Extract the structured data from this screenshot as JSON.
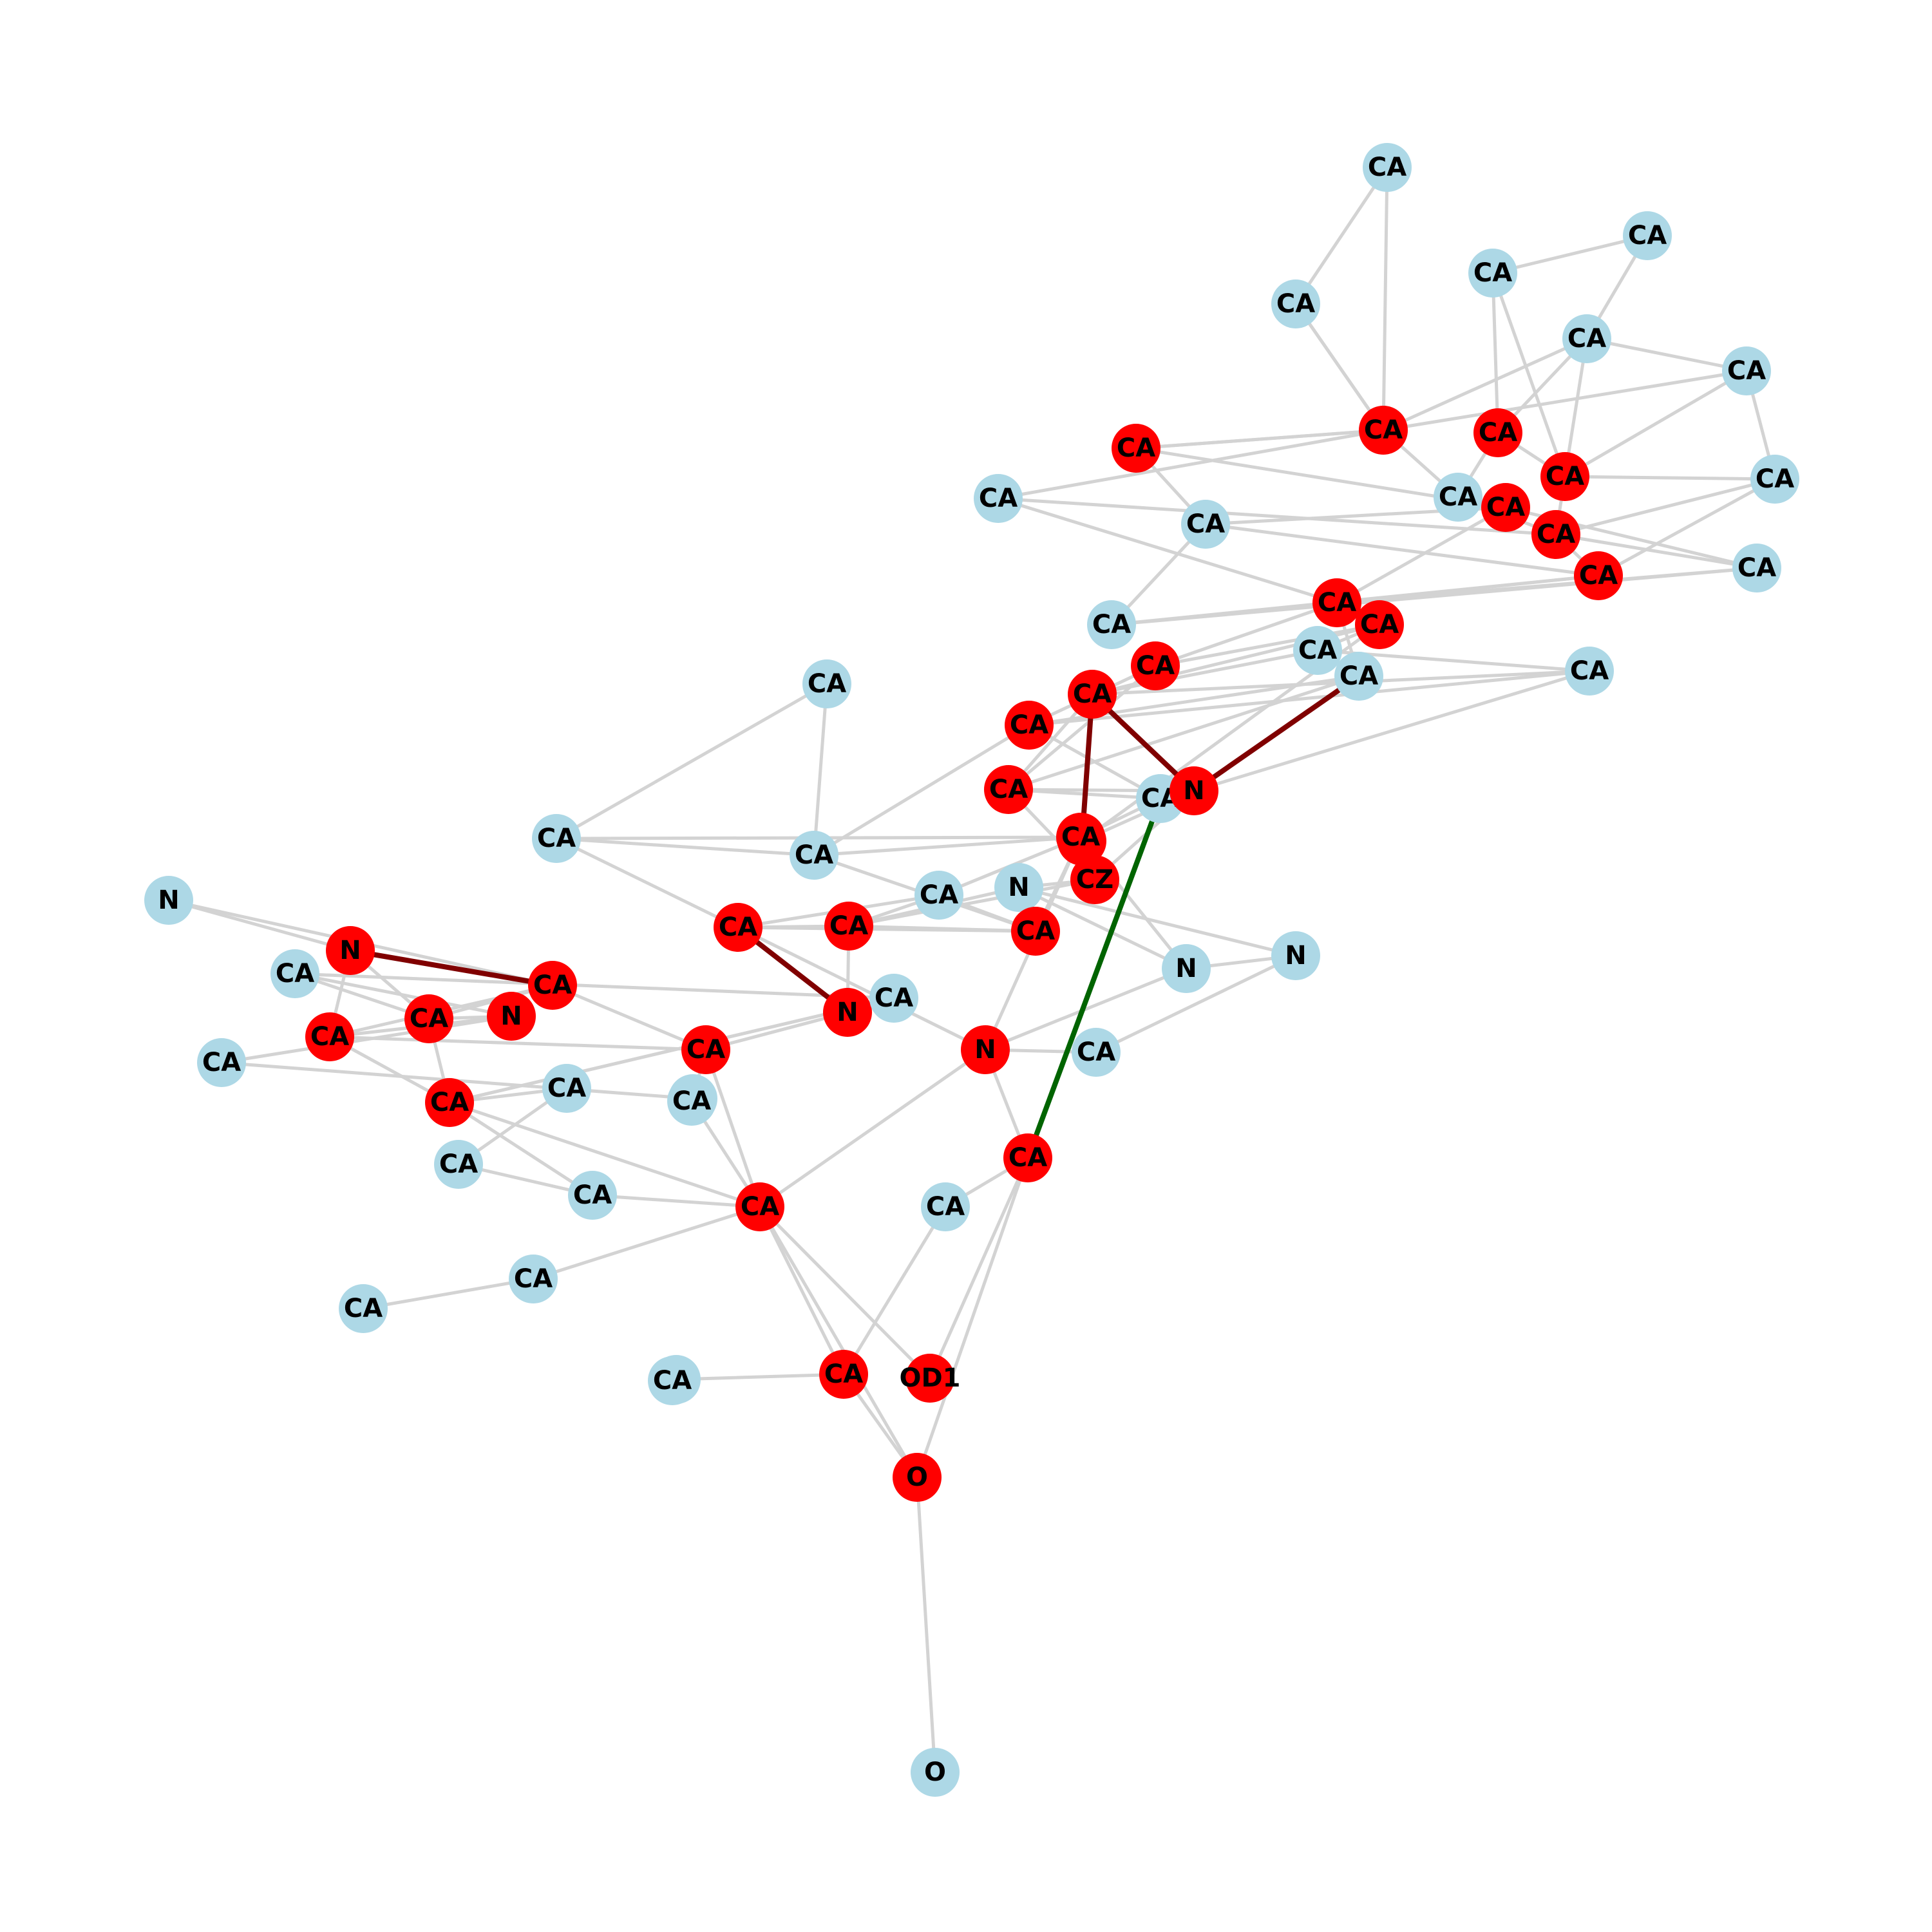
{
  "colors": {
    "background": "#ffffff",
    "edge": "#d3d3d3",
    "bond": "#800000",
    "highlight": "#006400",
    "node_default": "#add8e6",
    "node_selected": "#ff0000",
    "label": "#000000"
  },
  "nodes": [
    {
      "id": "a1",
      "label": "CA",
      "group": "default"
    },
    {
      "id": "a2",
      "label": "CA",
      "group": "default"
    },
    {
      "id": "a3",
      "label": "CA",
      "group": "default"
    },
    {
      "id": "a4",
      "label": "CA",
      "group": "default"
    },
    {
      "id": "a5",
      "label": "CA",
      "group": "default"
    },
    {
      "id": "a6",
      "label": "CA",
      "group": "default"
    },
    {
      "id": "a7",
      "label": "CA",
      "group": "selected"
    },
    {
      "id": "a8",
      "label": "CA",
      "group": "selected"
    },
    {
      "id": "a9",
      "label": "CA",
      "group": "default"
    },
    {
      "id": "a10",
      "label": "CA",
      "group": "default"
    },
    {
      "id": "a11",
      "label": "CA",
      "group": "selected"
    },
    {
      "id": "a12",
      "label": "CA",
      "group": "default"
    },
    {
      "id": "a13",
      "label": "CA",
      "group": "selected"
    },
    {
      "id": "a14",
      "label": "CA",
      "group": "default"
    },
    {
      "id": "a15",
      "label": "CA",
      "group": "default"
    },
    {
      "id": "a16",
      "label": "CA",
      "group": "selected"
    },
    {
      "id": "a17",
      "label": "CA",
      "group": "selected"
    },
    {
      "id": "a18",
      "label": "CA",
      "group": "selected"
    },
    {
      "id": "a19",
      "label": "CA",
      "group": "default"
    },
    {
      "id": "a20",
      "label": "CA",
      "group": "default"
    },
    {
      "id": "a21",
      "label": "CA",
      "group": "selected"
    },
    {
      "id": "a22",
      "label": "CA",
      "group": "selected"
    },
    {
      "id": "a23",
      "label": "CA",
      "group": "default"
    },
    {
      "id": "a24",
      "label": "CA",
      "group": "default"
    },
    {
      "id": "a25",
      "label": "CA",
      "group": "selected"
    },
    {
      "id": "a26",
      "label": "CA",
      "group": "default"
    },
    {
      "id": "a27",
      "label": "CA",
      "group": "default"
    },
    {
      "id": "a28",
      "label": "CA",
      "group": "selected"
    },
    {
      "id": "a29",
      "label": "CA",
      "group": "selected"
    },
    {
      "id": "a30",
      "label": "CA",
      "group": "default"
    },
    {
      "id": "a31",
      "label": "N",
      "group": "selected"
    },
    {
      "id": "a32",
      "label": "CA",
      "group": "default"
    },
    {
      "id": "a33",
      "label": "CA",
      "group": "selected"
    },
    {
      "id": "a34",
      "label": "N",
      "group": "selected"
    },
    {
      "id": "a35",
      "label": "CA",
      "group": "default"
    },
    {
      "id": "a36",
      "label": "CA",
      "group": "selected"
    },
    {
      "id": "a37",
      "label": "N",
      "group": "default"
    },
    {
      "id": "a38",
      "label": "CZ",
      "group": "selected"
    },
    {
      "id": "a39",
      "label": "CA",
      "group": "default"
    },
    {
      "id": "a40",
      "label": "CA",
      "group": "selected"
    },
    {
      "id": "a41",
      "label": "N",
      "group": "default"
    },
    {
      "id": "a42",
      "label": "CA",
      "group": "selected"
    },
    {
      "id": "a43",
      "label": "N",
      "group": "default"
    },
    {
      "id": "a44",
      "label": "N",
      "group": "default"
    },
    {
      "id": "a45",
      "label": "N",
      "group": "selected"
    },
    {
      "id": "a46",
      "label": "CA",
      "group": "selected"
    },
    {
      "id": "a47",
      "label": "N",
      "group": "selected"
    },
    {
      "id": "a48",
      "label": "CA",
      "group": "selected"
    },
    {
      "id": "a49",
      "label": "CA",
      "group": "default"
    },
    {
      "id": "a50",
      "label": "CA",
      "group": "default"
    },
    {
      "id": "a51",
      "label": "N",
      "group": "selected"
    },
    {
      "id": "a52",
      "label": "CA",
      "group": "default"
    },
    {
      "id": "a53",
      "label": "CA",
      "group": "selected"
    },
    {
      "id": "a54",
      "label": "CA",
      "group": "selected"
    },
    {
      "id": "a55",
      "label": "CA",
      "group": "default"
    },
    {
      "id": "a56",
      "label": "CA",
      "group": "selected"
    },
    {
      "id": "a57",
      "label": "N",
      "group": "selected"
    },
    {
      "id": "a58",
      "label": "CA",
      "group": "default"
    },
    {
      "id": "a59",
      "label": "CA",
      "group": "default"
    },
    {
      "id": "a60",
      "label": "CA",
      "group": "selected"
    },
    {
      "id": "a61",
      "label": "CA",
      "group": "default"
    },
    {
      "id": "a62",
      "label": "CA",
      "group": "default"
    },
    {
      "id": "a63",
      "label": "CA",
      "group": "default"
    },
    {
      "id": "a64",
      "label": "CA",
      "group": "selected"
    },
    {
      "id": "a65",
      "label": "CA",
      "group": "selected"
    },
    {
      "id": "a66",
      "label": "CA",
      "group": "default"
    },
    {
      "id": "a67",
      "label": "CA",
      "group": "default"
    },
    {
      "id": "a68",
      "label": "CA",
      "group": "default"
    },
    {
      "id": "a69",
      "label": "CA",
      "group": "default"
    },
    {
      "id": "a70",
      "label": "CA",
      "group": "selected"
    },
    {
      "id": "a71",
      "label": "OD1",
      "group": "selected"
    },
    {
      "id": "a72",
      "label": "CA",
      "group": "default"
    },
    {
      "id": "a73",
      "label": "O",
      "group": "selected"
    },
    {
      "id": "a74",
      "label": "O",
      "group": "default"
    }
  ],
  "edges": [
    [
      "a1",
      "a3"
    ],
    [
      "a1",
      "a6"
    ],
    [
      "a2",
      "a5"
    ],
    [
      "a2",
      "a4"
    ],
    [
      "a3",
      "a6"
    ],
    [
      "a3",
      "a7"
    ],
    [
      "a5",
      "a7"
    ],
    [
      "a5",
      "a13"
    ],
    [
      "a5",
      "a9"
    ],
    [
      "a5",
      "a8"
    ],
    [
      "a4",
      "a8"
    ],
    [
      "a6",
      "a11"
    ],
    [
      "a6",
      "a7"
    ],
    [
      "a7",
      "a11"
    ],
    [
      "a7",
      "a12"
    ],
    [
      "a7",
      "a10"
    ],
    [
      "a8",
      "a13"
    ],
    [
      "a8",
      "a12"
    ],
    [
      "a9",
      "a13"
    ],
    [
      "a9",
      "a14"
    ],
    [
      "a13",
      "a14"
    ],
    [
      "a13",
      "a17"
    ],
    [
      "a11",
      "a15"
    ],
    [
      "a11",
      "a16"
    ],
    [
      "a12",
      "a16"
    ],
    [
      "a12",
      "a17"
    ],
    [
      "a14",
      "a17"
    ],
    [
      "a16",
      "a15"
    ],
    [
      "a17",
      "a18"
    ],
    [
      "a17",
      "a19"
    ],
    [
      "a18",
      "a20"
    ],
    [
      "a18",
      "a21"
    ],
    [
      "a19",
      "a20"
    ],
    [
      "a16",
      "a19"
    ],
    [
      "a15",
      "a18"
    ],
    [
      "a15",
      "a20"
    ],
    [
      "a10",
      "a21"
    ],
    [
      "a10",
      "a17"
    ],
    [
      "a21",
      "a22"
    ],
    [
      "a21",
      "a25"
    ],
    [
      "a21",
      "a24"
    ],
    [
      "a22",
      "a25"
    ],
    [
      "a22",
      "a23"
    ],
    [
      "a22",
      "a28"
    ],
    [
      "a23",
      "a26"
    ],
    [
      "a23",
      "a28"
    ],
    [
      "a26",
      "a28"
    ],
    [
      "a26",
      "a29"
    ],
    [
      "a24",
      "a29"
    ],
    [
      "a24",
      "a33"
    ],
    [
      "a25",
      "a29"
    ],
    [
      "a25",
      "a33"
    ],
    [
      "a28",
      "a33"
    ],
    [
      "a27",
      "a32"
    ],
    [
      "a27",
      "a35"
    ],
    [
      "a29",
      "a30"
    ],
    [
      "a30",
      "a33"
    ],
    [
      "a30",
      "a31"
    ],
    [
      "a31",
      "a33"
    ],
    [
      "a31",
      "a34"
    ],
    [
      "a32",
      "a35"
    ],
    [
      "a32",
      "a36"
    ],
    [
      "a33",
      "a38"
    ],
    [
      "a35",
      "a36"
    ],
    [
      "a35",
      "a40"
    ],
    [
      "a36",
      "a38"
    ],
    [
      "a36",
      "a40"
    ],
    [
      "a36",
      "a41"
    ],
    [
      "a37",
      "a38"
    ],
    [
      "a37",
      "a42"
    ],
    [
      "a38",
      "a42"
    ],
    [
      "a39",
      "a36"
    ],
    [
      "a39",
      "a46"
    ],
    [
      "a39",
      "a40"
    ],
    [
      "a40",
      "a42"
    ],
    [
      "a40",
      "a46"
    ],
    [
      "a41",
      "a37"
    ],
    [
      "a41",
      "a43"
    ],
    [
      "a42",
      "a46"
    ],
    [
      "a43",
      "a49"
    ],
    [
      "a44",
      "a45"
    ],
    [
      "a44",
      "a48"
    ],
    [
      "a45",
      "a48"
    ],
    [
      "a45",
      "a53"
    ],
    [
      "a46",
      "a47"
    ],
    [
      "a46",
      "a57"
    ],
    [
      "a47",
      "a56"
    ],
    [
      "a47",
      "a52"
    ],
    [
      "a48",
      "a53"
    ],
    [
      "a48",
      "a54"
    ],
    [
      "a48",
      "a56"
    ],
    [
      "a49",
      "a57"
    ],
    [
      "a50",
      "a51"
    ],
    [
      "a50",
      "a53"
    ],
    [
      "a50",
      "a52"
    ],
    [
      "a51",
      "a53"
    ],
    [
      "a51",
      "a54"
    ],
    [
      "a51",
      "a55"
    ],
    [
      "a52",
      "a60"
    ],
    [
      "a53",
      "a60"
    ],
    [
      "a54",
      "a56"
    ],
    [
      "a54",
      "a60"
    ],
    [
      "a55",
      "a59"
    ],
    [
      "a56",
      "a64"
    ],
    [
      "a56",
      "a59"
    ],
    [
      "a57",
      "a64"
    ],
    [
      "a57",
      "a65"
    ],
    [
      "a58",
      "a61"
    ],
    [
      "a58",
      "a60"
    ],
    [
      "a59",
      "a63"
    ],
    [
      "a60",
      "a62"
    ],
    [
      "a60",
      "a64"
    ],
    [
      "a61",
      "a62"
    ],
    [
      "a62",
      "a64"
    ],
    [
      "a63",
      "a64"
    ],
    [
      "a64",
      "a70"
    ],
    [
      "a64",
      "a71"
    ],
    [
      "a64",
      "a73"
    ],
    [
      "a65",
      "a66"
    ],
    [
      "a65",
      "a71"
    ],
    [
      "a65",
      "a73"
    ],
    [
      "a66",
      "a70"
    ],
    [
      "a67",
      "a68"
    ],
    [
      "a68",
      "a64"
    ],
    [
      "a69",
      "a70"
    ],
    [
      "a70",
      "a73"
    ],
    [
      "a73",
      "a74"
    ],
    [
      "a34",
      "a22"
    ],
    [
      "a31",
      "a26"
    ],
    [
      "a38",
      "a31"
    ],
    [
      "a47",
      "a42"
    ],
    [
      "a57",
      "a36"
    ],
    [
      "a4",
      "a13"
    ],
    [
      "a9",
      "a7"
    ],
    [
      "a14",
      "a18"
    ],
    [
      "a19",
      "a21"
    ],
    [
      "a16",
      "a21"
    ],
    [
      "a39",
      "a42"
    ],
    [
      "a43",
      "a37"
    ],
    [
      "a41",
      "a57"
    ],
    [
      "a46",
      "a32"
    ],
    [
      "a30",
      "a36"
    ],
    [
      "a29",
      "a35"
    ],
    [
      "a60",
      "a52"
    ],
    [
      "a45",
      "a54"
    ]
  ],
  "bonds": [
    [
      "a45",
      "a48"
    ],
    [
      "a46",
      "a47"
    ],
    [
      "a24",
      "a31"
    ],
    [
      "a28",
      "a31"
    ],
    [
      "a28",
      "a34"
    ]
  ],
  "highlights": [
    [
      "a30",
      "a65"
    ]
  ]
}
